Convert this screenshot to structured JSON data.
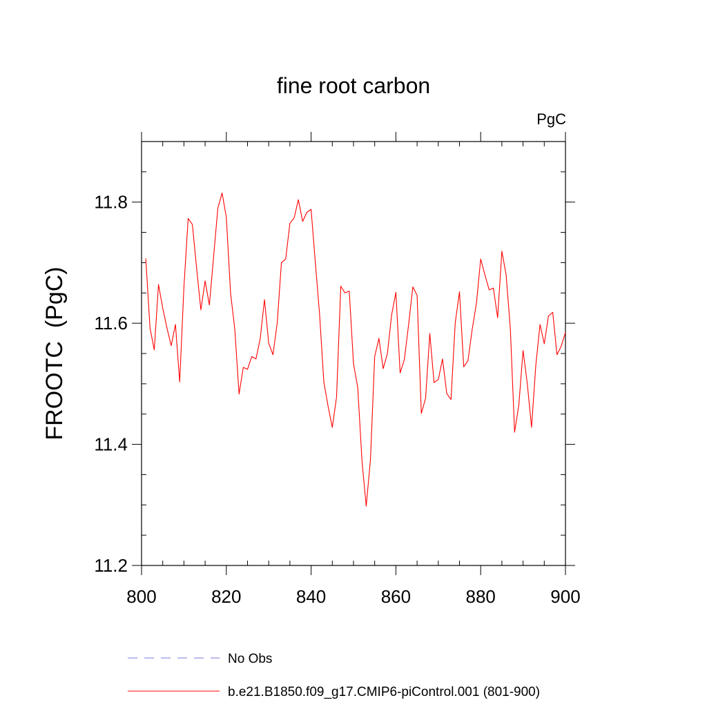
{
  "chart_data": {
    "type": "line",
    "title": "fine root carbon",
    "units": "PgC",
    "xlabel": "",
    "ylabel": "FROOTC  (PgC)",
    "xlim": [
      800,
      900
    ],
    "ylim": [
      11.2,
      11.9
    ],
    "x_ticks": [
      800,
      820,
      840,
      860,
      880,
      900
    ],
    "x_tick_labels": [
      "800",
      "820",
      "840",
      "860",
      "880",
      "900"
    ],
    "y_ticks": [
      11.2,
      11.4,
      11.6,
      11.8
    ],
    "y_tick_labels": [
      "11.2",
      "11.4",
      "11.6",
      "11.8"
    ],
    "grid": false,
    "legend_position": "bottom",
    "series": [
      {
        "name": "b.e21.B1850.f09_g17.CMIP6-piControl.001 (801-900)",
        "color": "#ff0000",
        "style": "solid",
        "x": [
          801,
          802,
          803,
          804,
          805,
          806,
          807,
          808,
          809,
          810,
          811,
          812,
          813,
          814,
          815,
          816,
          817,
          818,
          819,
          820,
          821,
          822,
          823,
          824,
          825,
          826,
          827,
          828,
          829,
          830,
          831,
          832,
          833,
          834,
          835,
          836,
          837,
          838,
          839,
          840,
          841,
          842,
          843,
          844,
          845,
          846,
          847,
          848,
          849,
          850,
          851,
          852,
          853,
          854,
          855,
          856,
          857,
          858,
          859,
          860,
          861,
          862,
          863,
          864,
          865,
          866,
          867,
          868,
          869,
          870,
          871,
          872,
          873,
          874,
          875,
          876,
          877,
          878,
          879,
          880,
          881,
          882,
          883,
          884,
          885,
          886,
          887,
          888,
          889,
          890,
          891,
          892,
          893,
          894,
          895,
          896,
          897,
          898,
          899,
          900
        ],
        "values": [
          11.707,
          11.592,
          11.556,
          11.664,
          11.625,
          11.592,
          11.563,
          11.598,
          11.503,
          11.66,
          11.773,
          11.763,
          11.69,
          11.622,
          11.67,
          11.63,
          11.71,
          11.79,
          11.815,
          11.775,
          11.65,
          11.59,
          11.483,
          11.527,
          11.524,
          11.545,
          11.541,
          11.575,
          11.639,
          11.567,
          11.548,
          11.6,
          11.7,
          11.706,
          11.765,
          11.774,
          11.804,
          11.768,
          11.783,
          11.788,
          11.7,
          11.615,
          11.503,
          11.463,
          11.428,
          11.478,
          11.661,
          11.65,
          11.653,
          11.533,
          11.494,
          11.373,
          11.298,
          11.375,
          11.545,
          11.575,
          11.525,
          11.55,
          11.614,
          11.651,
          11.518,
          11.54,
          11.598,
          11.66,
          11.646,
          11.451,
          11.476,
          11.583,
          11.502,
          11.507,
          11.541,
          11.484,
          11.474,
          11.601,
          11.652,
          11.528,
          11.538,
          11.59,
          11.633,
          11.706,
          11.68,
          11.655,
          11.658,
          11.609,
          11.719,
          11.68,
          11.591,
          11.42,
          11.465,
          11.555,
          11.5,
          11.428,
          11.53,
          11.598,
          11.566,
          11.612,
          11.618,
          11.548,
          11.562,
          11.585
        ]
      },
      {
        "name": "No Obs",
        "color": "#7a7adf",
        "style": "dashed",
        "x": [],
        "values": []
      }
    ]
  }
}
